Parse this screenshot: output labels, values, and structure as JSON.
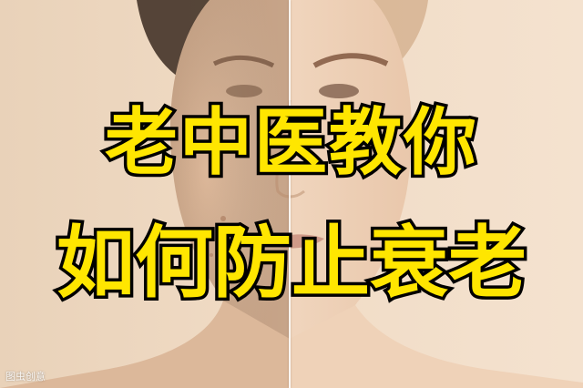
{
  "headline": {
    "line1": "老中医教你",
    "line2": "如何防止衰老"
  },
  "watermark": "图虫创意",
  "colors": {
    "text_fill": "#ffe600",
    "text_outline": "#000000",
    "background": "#f1dcc6"
  }
}
